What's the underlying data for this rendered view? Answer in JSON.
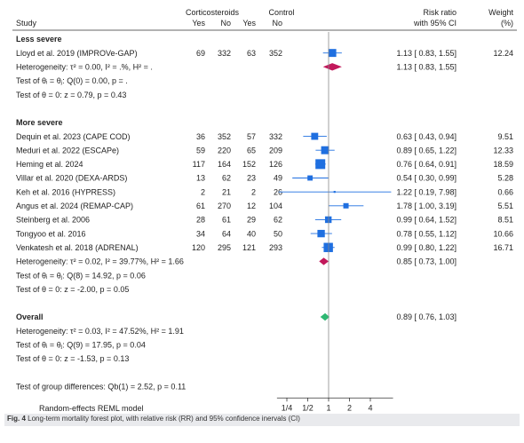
{
  "figure": {
    "caption_label": "Fig. 4",
    "caption_text": "Long-term mortality forest plot, with relative risk (RR) and 95% confidence inervals (CI)"
  },
  "colors": {
    "marker": "#1f6fe0",
    "subgroup_diamond": "#c2185b",
    "overall_diamond": "#2eb872",
    "text": "#222222",
    "rule": "#333333"
  },
  "chart_data": {
    "type": "forest",
    "title": "",
    "header": {
      "study": "Study",
      "group1": "Corticosteroids",
      "group2": "Control",
      "yes": "Yes",
      "no": "No",
      "effect_line1": "Risk ratio",
      "effect_line2": "with 95% CI",
      "weight_line1": "Weight",
      "weight_line2": "(%)"
    },
    "x_scale": "log2",
    "xlim": [
      0.18,
      8.5
    ],
    "ticks": [
      0.25,
      0.5,
      1,
      2,
      4
    ],
    "tick_labels": [
      "1/4",
      "1/2",
      "1",
      "2",
      "4"
    ],
    "null_value": 1,
    "rows": [
      {
        "kind": "group",
        "label": "Less severe"
      },
      {
        "kind": "study",
        "label": "Lloyd et al. 2019 (IMPROVe-GAP)",
        "yes1": 69,
        "no1": 332,
        "yes2": 63,
        "no2": 352,
        "rr": 1.13,
        "lo": 0.83,
        "hi": 1.55,
        "ci_text": "1.13 [ 0.83,  1.55]",
        "weight": "12.24"
      },
      {
        "kind": "het",
        "label": "Heterogeneity: τ² = 0.00, I² = .%, H² = .",
        "rr": 1.13,
        "lo": 0.83,
        "hi": 1.55,
        "ci_text": "1.13 [ 0.83,  1.55]",
        "diamond": "subgroup"
      },
      {
        "kind": "note",
        "label": "Test of θᵢ = θⱼ: Q(0) = 0.00, p = ."
      },
      {
        "kind": "note",
        "label": "Test of θ = 0: z = 0.79, p = 0.43"
      },
      {
        "kind": "blank"
      },
      {
        "kind": "group",
        "label": "More severe"
      },
      {
        "kind": "study",
        "label": "Dequin et al. 2023 (CAPE COD)",
        "yes1": 36,
        "no1": 352,
        "yes2": 57,
        "no2": 332,
        "rr": 0.63,
        "lo": 0.43,
        "hi": 0.94,
        "ci_text": "0.63 [ 0.43,  0.94]",
        "weight": "9.51"
      },
      {
        "kind": "study",
        "label": "Meduri et al. 2022 (ESCAPe)",
        "yes1": 59,
        "no1": 220,
        "yes2": 65,
        "no2": 209,
        "rr": 0.89,
        "lo": 0.65,
        "hi": 1.22,
        "ci_text": "0.89 [ 0.65,  1.22]",
        "weight": "12.33"
      },
      {
        "kind": "study",
        "label": "Heming et al. 2024",
        "yes1": 117,
        "no1": 164,
        "yes2": 152,
        "no2": 126,
        "rr": 0.76,
        "lo": 0.64,
        "hi": 0.91,
        "ci_text": "0.76 [ 0.64,  0.91]",
        "weight": "18.59"
      },
      {
        "kind": "study",
        "label": "Villar et al. 2020 (DEXA-ARDS)",
        "yes1": 13,
        "no1": 62,
        "yes2": 23,
        "no2": 49,
        "rr": 0.54,
        "lo": 0.3,
        "hi": 0.99,
        "ci_text": "0.54 [ 0.30,  0.99]",
        "weight": "5.28"
      },
      {
        "kind": "study",
        "label": "Keh et al. 2016 (HYPRESS)",
        "yes1": 2,
        "no1": 21,
        "yes2": 2,
        "no2": 26,
        "rr": 1.22,
        "lo": 0.19,
        "hi": 7.98,
        "ci_text": "1.22 [ 0.19,  7.98]",
        "weight": "0.66"
      },
      {
        "kind": "study",
        "label": "Angus et al. 2024 (REMAP-CAP)",
        "yes1": 61,
        "no1": 270,
        "yes2": 12,
        "no2": 104,
        "rr": 1.78,
        "lo": 1.0,
        "hi": 3.19,
        "ci_text": "1.78 [ 1.00,  3.19]",
        "weight": "5.51"
      },
      {
        "kind": "study",
        "label": "Steinberg et al. 2006",
        "yes1": 28,
        "no1": 61,
        "yes2": 29,
        "no2": 62,
        "rr": 0.99,
        "lo": 0.64,
        "hi": 1.52,
        "ci_text": "0.99 [ 0.64,  1.52]",
        "weight": "8.51"
      },
      {
        "kind": "study",
        "label": "Tongyoo et al. 2016",
        "yes1": 34,
        "no1": 64,
        "yes2": 40,
        "no2": 50,
        "rr": 0.78,
        "lo": 0.55,
        "hi": 1.12,
        "ci_text": "0.78 [ 0.55,  1.12]",
        "weight": "10.66"
      },
      {
        "kind": "study",
        "label": "Venkatesh et al. 2018 (ADRENAL)",
        "yes1": 120,
        "no1": 295,
        "yes2": 121,
        "no2": 293,
        "rr": 0.99,
        "lo": 0.8,
        "hi": 1.22,
        "ci_text": "0.99 [ 0.80,  1.22]",
        "weight": "16.71"
      },
      {
        "kind": "het",
        "label": "Heterogeneity: τ² = 0.02, I² = 39.77%, H² = 1.66",
        "rr": 0.85,
        "lo": 0.73,
        "hi": 1.0,
        "ci_text": "0.85 [ 0.73,  1.00]",
        "diamond": "subgroup"
      },
      {
        "kind": "note",
        "label": "Test of θᵢ = θⱼ: Q(8) = 14.92, p = 0.06"
      },
      {
        "kind": "note",
        "label": "Test of θ = 0: z = -2.00, p = 0.05"
      },
      {
        "kind": "blank"
      },
      {
        "kind": "group",
        "label": "Overall",
        "rr": 0.89,
        "lo": 0.76,
        "hi": 1.03,
        "ci_text": "0.89 [ 0.76,  1.03]",
        "diamond": "overall"
      },
      {
        "kind": "note",
        "label": "Heterogeneity: τ² = 0.03, I² = 47.52%, H² = 1.91"
      },
      {
        "kind": "note",
        "label": "Test of θᵢ = θⱼ: Q(9) = 17.95, p = 0.04"
      },
      {
        "kind": "note",
        "label": "Test of θ = 0: z = -1.53, p = 0.13"
      },
      {
        "kind": "blank"
      },
      {
        "kind": "note",
        "label": "Test of group differences: Qb(1) = 2.52, p = 0.11"
      }
    ],
    "footnote": "Random-effects REML model"
  }
}
